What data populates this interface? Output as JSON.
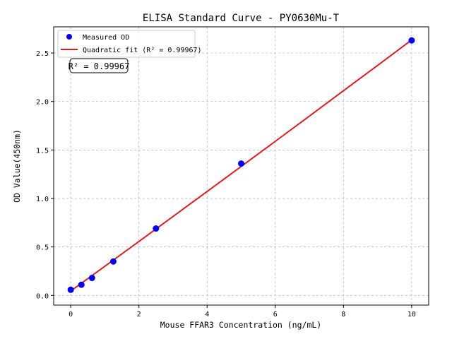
{
  "chart_data": {
    "type": "scatter",
    "title": "ELISA Standard Curve - PY0630Mu-T",
    "xlabel": "Mouse FFAR3 Concentration (ng/mL)",
    "ylabel": "OD Value(450nm)",
    "xlim": [
      -0.5,
      10.5
    ],
    "ylim": [
      -0.1,
      2.77
    ],
    "xticks": [
      0,
      2,
      4,
      6,
      8,
      10
    ],
    "yticks": [
      0.0,
      0.5,
      1.0,
      1.5,
      2.0,
      2.5
    ],
    "grid": true,
    "legend_position": "top-left",
    "annotation": "R² = 0.99967",
    "series": [
      {
        "name": "Measured OD",
        "kind": "scatter",
        "color": "#0000ff",
        "x": [
          0,
          0.3125,
          0.625,
          1.25,
          2.5,
          5,
          10
        ],
        "y": [
          0.058,
          0.11,
          0.18,
          0.35,
          0.69,
          1.36,
          2.63
        ]
      },
      {
        "name": "Quadratic fit (R² = 0.99967)",
        "kind": "line",
        "color": "#e41a1c",
        "x": [
          0,
          1,
          2,
          3,
          4,
          5,
          6,
          7,
          8,
          9,
          10
        ],
        "y": [
          0.045,
          0.3,
          0.556,
          0.814,
          1.071,
          1.33,
          1.589,
          1.849,
          2.111,
          2.372,
          2.635
        ]
      }
    ]
  }
}
